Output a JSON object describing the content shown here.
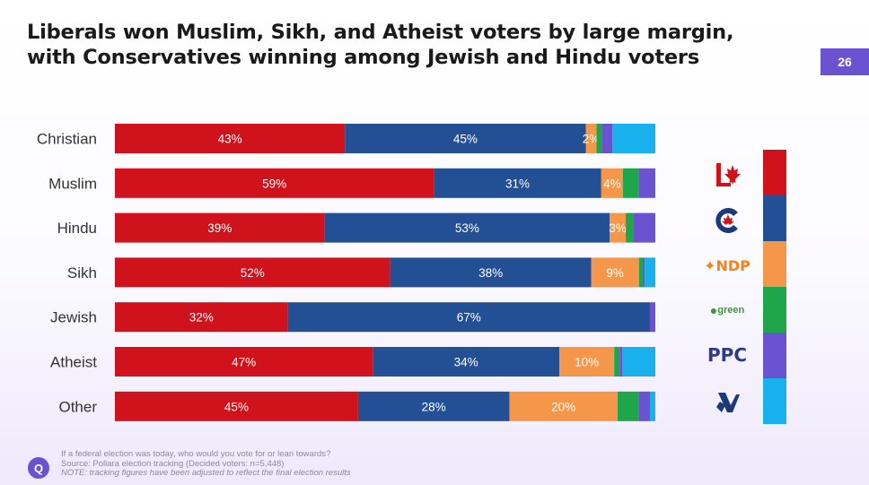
{
  "title_line1": "Liberals won Muslim, Sikh, and Atheist voters by large margin,",
  "title_line2": "with Conservatives winning among Jewish and Hindu voters",
  "page_number": "26",
  "chart_data": {
    "type": "bar",
    "orientation": "horizontal",
    "stacked": true,
    "categories": [
      "Christian",
      "Muslim",
      "Hindu",
      "Sikh",
      "Jewish",
      "Atheist",
      "Other"
    ],
    "series": [
      {
        "name": "Liberal",
        "color": "#d0121c",
        "values": [
          43,
          59,
          39,
          52,
          32,
          47,
          45
        ],
        "labels": [
          "43%",
          "59%",
          "39%",
          "52%",
          "32%",
          "47%",
          "45%"
        ]
      },
      {
        "name": "Conservative",
        "color": "#234f94",
        "values": [
          45,
          31,
          53,
          38,
          67,
          34,
          28
        ],
        "labels": [
          "45%",
          "31%",
          "53%",
          "38%",
          "67%",
          "34%",
          "28%"
        ]
      },
      {
        "name": "NDP",
        "color": "#f5974a",
        "values": [
          2,
          4,
          3,
          9,
          0,
          10,
          20
        ],
        "labels": [
          "2%",
          "4%",
          "3%",
          "9%",
          "",
          "10%",
          "20%"
        ]
      },
      {
        "name": "Green",
        "color": "#1fa64a",
        "values": [
          1,
          3,
          1.5,
          0.8,
          0,
          1,
          4
        ],
        "labels": [
          "",
          "",
          "",
          "",
          "",
          "",
          ""
        ]
      },
      {
        "name": "PPC",
        "color": "#6a52d1",
        "values": [
          2,
          3,
          4,
          0.3,
          1,
          0.5,
          2
        ],
        "labels": [
          "",
          "",
          "",
          "",
          "",
          "",
          ""
        ]
      },
      {
        "name": "Bloc",
        "color": "#19b0ee",
        "values": [
          8,
          0,
          0,
          2,
          0,
          6,
          1
        ],
        "labels": [
          "",
          "",
          "",
          "",
          "",
          "",
          ""
        ]
      }
    ],
    "xlim": [
      0,
      100
    ],
    "legend": "right"
  },
  "legend": {
    "colors": [
      "#d0121c",
      "#234f94",
      "#f5974a",
      "#1fa64a",
      "#6a52d1",
      "#19b0ee"
    ],
    "liberal_icon": "maple-leaf-l-logo",
    "conservative_icon": "conservative-c-logo",
    "ndp_text": "NDP",
    "green_text": "green",
    "ppc_text": "PPC",
    "bloc_icon": "bloc-fleur-logo"
  },
  "footer": {
    "icon": "Q",
    "line1": "If a federal election was today, who would you vote for or lean towards?",
    "line2": "Source: Pollara election tracking (Decided voters: n=5,448)",
    "line3": "NOTE: tracking figures have been adjusted to reflect the final election results"
  }
}
